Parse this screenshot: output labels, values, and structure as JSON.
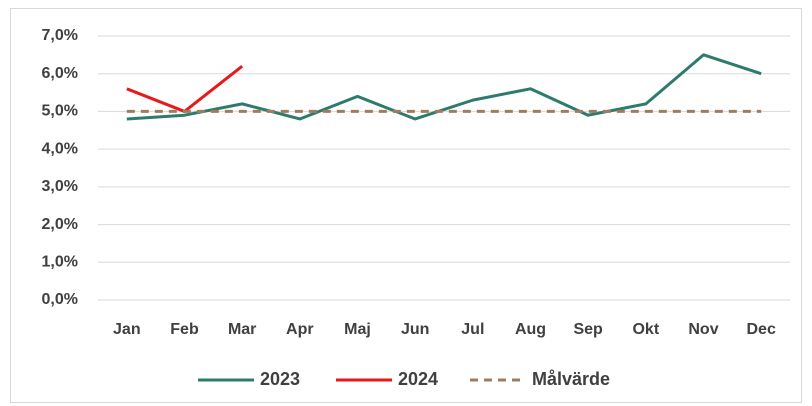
{
  "chart_data": {
    "type": "line",
    "categories": [
      "Jan",
      "Feb",
      "Mar",
      "Apr",
      "Maj",
      "Jun",
      "Jul",
      "Aug",
      "Sep",
      "Okt",
      "Nov",
      "Dec"
    ],
    "series": [
      {
        "name": "2023",
        "color": "#2e7a6c",
        "dash": "solid",
        "values": [
          4.8,
          4.9,
          5.2,
          4.8,
          5.4,
          4.8,
          5.3,
          5.6,
          4.9,
          5.2,
          6.5,
          6.0
        ]
      },
      {
        "name": "2024",
        "color": "#e8191b",
        "dash": "solid",
        "values": [
          5.6,
          5.0,
          6.2,
          null,
          null,
          null,
          null,
          null,
          null,
          null,
          null,
          null
        ]
      },
      {
        "name": "Målvärde",
        "color": "#a07c5e",
        "dash": "dashed",
        "values": [
          5.0,
          5.0,
          5.0,
          5.0,
          5.0,
          5.0,
          5.0,
          5.0,
          5.0,
          5.0,
          5.0,
          5.0
        ]
      }
    ],
    "ylim": [
      0,
      7
    ],
    "yticks": [
      {
        "value": 0,
        "label": "0,0%"
      },
      {
        "value": 1,
        "label": "1,0%"
      },
      {
        "value": 2,
        "label": "2,0%"
      },
      {
        "value": 3,
        "label": "3,0%"
      },
      {
        "value": 4,
        "label": "4,0%"
      },
      {
        "value": 5,
        "label": "5,0%"
      },
      {
        "value": 6,
        "label": "6,0%"
      },
      {
        "value": 7,
        "label": "7,0%"
      }
    ],
    "grid": true,
    "legend": "bottom"
  }
}
